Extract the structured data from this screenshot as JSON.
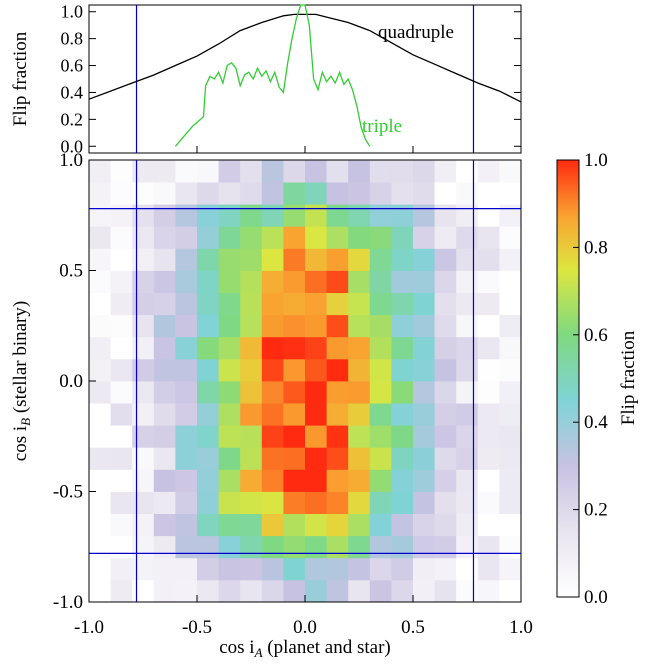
{
  "chart_data": [
    {
      "type": "line",
      "panel": "top",
      "ylabel": "Flip fraction",
      "xlim": [
        -1.0,
        1.0
      ],
      "ylim": [
        -0.05,
        1.05
      ],
      "yticks": [
        "1.0",
        "0.8",
        "0.6",
        "0.4",
        "0.2",
        "0.0"
      ],
      "ytick_values": [
        1.0,
        0.8,
        0.6,
        0.4,
        0.2,
        0.0
      ],
      "vlines": [
        -0.78,
        0.78
      ],
      "series": [
        {
          "name": "quadruple",
          "color": "#000000",
          "x": [
            -1.0,
            -0.9,
            -0.8,
            -0.7,
            -0.6,
            -0.5,
            -0.4,
            -0.3,
            -0.2,
            -0.1,
            -0.05,
            0.0,
            0.05,
            0.1,
            0.2,
            0.3,
            0.4,
            0.5,
            0.6,
            0.7,
            0.8,
            0.9,
            1.0
          ],
          "y": [
            0.35,
            0.41,
            0.47,
            0.53,
            0.6,
            0.67,
            0.76,
            0.86,
            0.92,
            0.97,
            0.98,
            0.98,
            0.98,
            0.96,
            0.92,
            0.86,
            0.77,
            0.68,
            0.61,
            0.54,
            0.47,
            0.41,
            0.33
          ]
        },
        {
          "name": "triple",
          "color": "#33cc33",
          "x": [
            -0.6,
            -0.52,
            -0.47,
            -0.46,
            -0.44,
            -0.42,
            -0.4,
            -0.38,
            -0.36,
            -0.34,
            -0.32,
            -0.3,
            -0.28,
            -0.26,
            -0.24,
            -0.22,
            -0.2,
            -0.18,
            -0.16,
            -0.14,
            -0.12,
            -0.1,
            -0.08,
            -0.06,
            -0.04,
            -0.02,
            0.0,
            0.02,
            0.04,
            0.06,
            0.08,
            0.1,
            0.12,
            0.14,
            0.16,
            0.18,
            0.2,
            0.22,
            0.24,
            0.26,
            0.28,
            0.3
          ],
          "y": [
            0.0,
            0.15,
            0.22,
            0.45,
            0.52,
            0.5,
            0.55,
            0.47,
            0.6,
            0.62,
            0.58,
            0.45,
            0.53,
            0.55,
            0.5,
            0.58,
            0.52,
            0.56,
            0.48,
            0.55,
            0.44,
            0.4,
            0.62,
            0.8,
            0.95,
            1.05,
            1.05,
            0.9,
            0.5,
            0.42,
            0.55,
            0.48,
            0.52,
            0.47,
            0.55,
            0.46,
            0.5,
            0.42,
            0.3,
            0.14,
            0.05,
            0.0
          ]
        }
      ],
      "legend": [
        "quadruple",
        "triple"
      ]
    },
    {
      "type": "heatmap",
      "panel": "bottom",
      "xlabel": "cos i",
      "xlabel_sub": "A",
      "xlabel_suffix": " (planet and star)",
      "ylabel": "cos i",
      "ylabel_sub": "B",
      "ylabel_suffix": " (stellar binary)",
      "xlim": [
        -1.0,
        1.0
      ],
      "ylim": [
        -1.0,
        1.0
      ],
      "xticks": [
        "-1.0",
        "-0.5",
        "0.0",
        "0.5",
        "1.0"
      ],
      "xtick_values": [
        -1.0,
        -0.5,
        0.0,
        0.5,
        1.0
      ],
      "yticks": [
        "1.0",
        "0.5",
        "0.0",
        "-0.5",
        "-1.0"
      ],
      "ytick_values": [
        1.0,
        0.5,
        0.0,
        -0.5,
        -1.0
      ],
      "vlines": [
        -0.78,
        0.78
      ],
      "hlines": [
        -0.78,
        0.78
      ],
      "grid_n": 20,
      "colorbar": {
        "label": "Flip fraction",
        "ticks": [
          "1.0",
          "0.8",
          "0.6",
          "0.4",
          "0.2",
          "0.0"
        ],
        "tick_values": [
          1.0,
          0.8,
          0.6,
          0.4,
          0.2,
          0.0
        ],
        "range": [
          0.0,
          1.0
        ]
      }
    }
  ]
}
